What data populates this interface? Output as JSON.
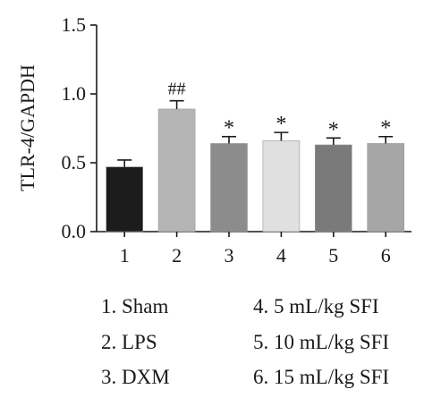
{
  "chart_data": {
    "type": "bar",
    "ylabel": "TLR-4/GAPDH",
    "xlabel": "",
    "ylim": [
      0,
      1.5
    ],
    "yticks": [
      "0.0",
      "0.5",
      "1.0",
      "1.5"
    ],
    "categories": [
      "1",
      "2",
      "3",
      "4",
      "5",
      "6"
    ],
    "values": [
      0.47,
      0.89,
      0.64,
      0.66,
      0.63,
      0.64
    ],
    "errors": [
      0.05,
      0.06,
      0.05,
      0.06,
      0.05,
      0.05
    ],
    "annotations": [
      "",
      "##",
      "*",
      "*",
      "*",
      "*"
    ],
    "bar_colors": [
      "#1c1c1c",
      "#b4b4b4",
      "#8c8c8c",
      "#e0e0e0",
      "#7a7a7a",
      "#a6a6a6"
    ],
    "legend": [
      "1. Sham",
      "2. LPS",
      "3. DXM",
      "4. 5 mL/kg SFI",
      "5. 10 mL/kg SFI",
      "6. 15 mL/kg SFI"
    ]
  }
}
